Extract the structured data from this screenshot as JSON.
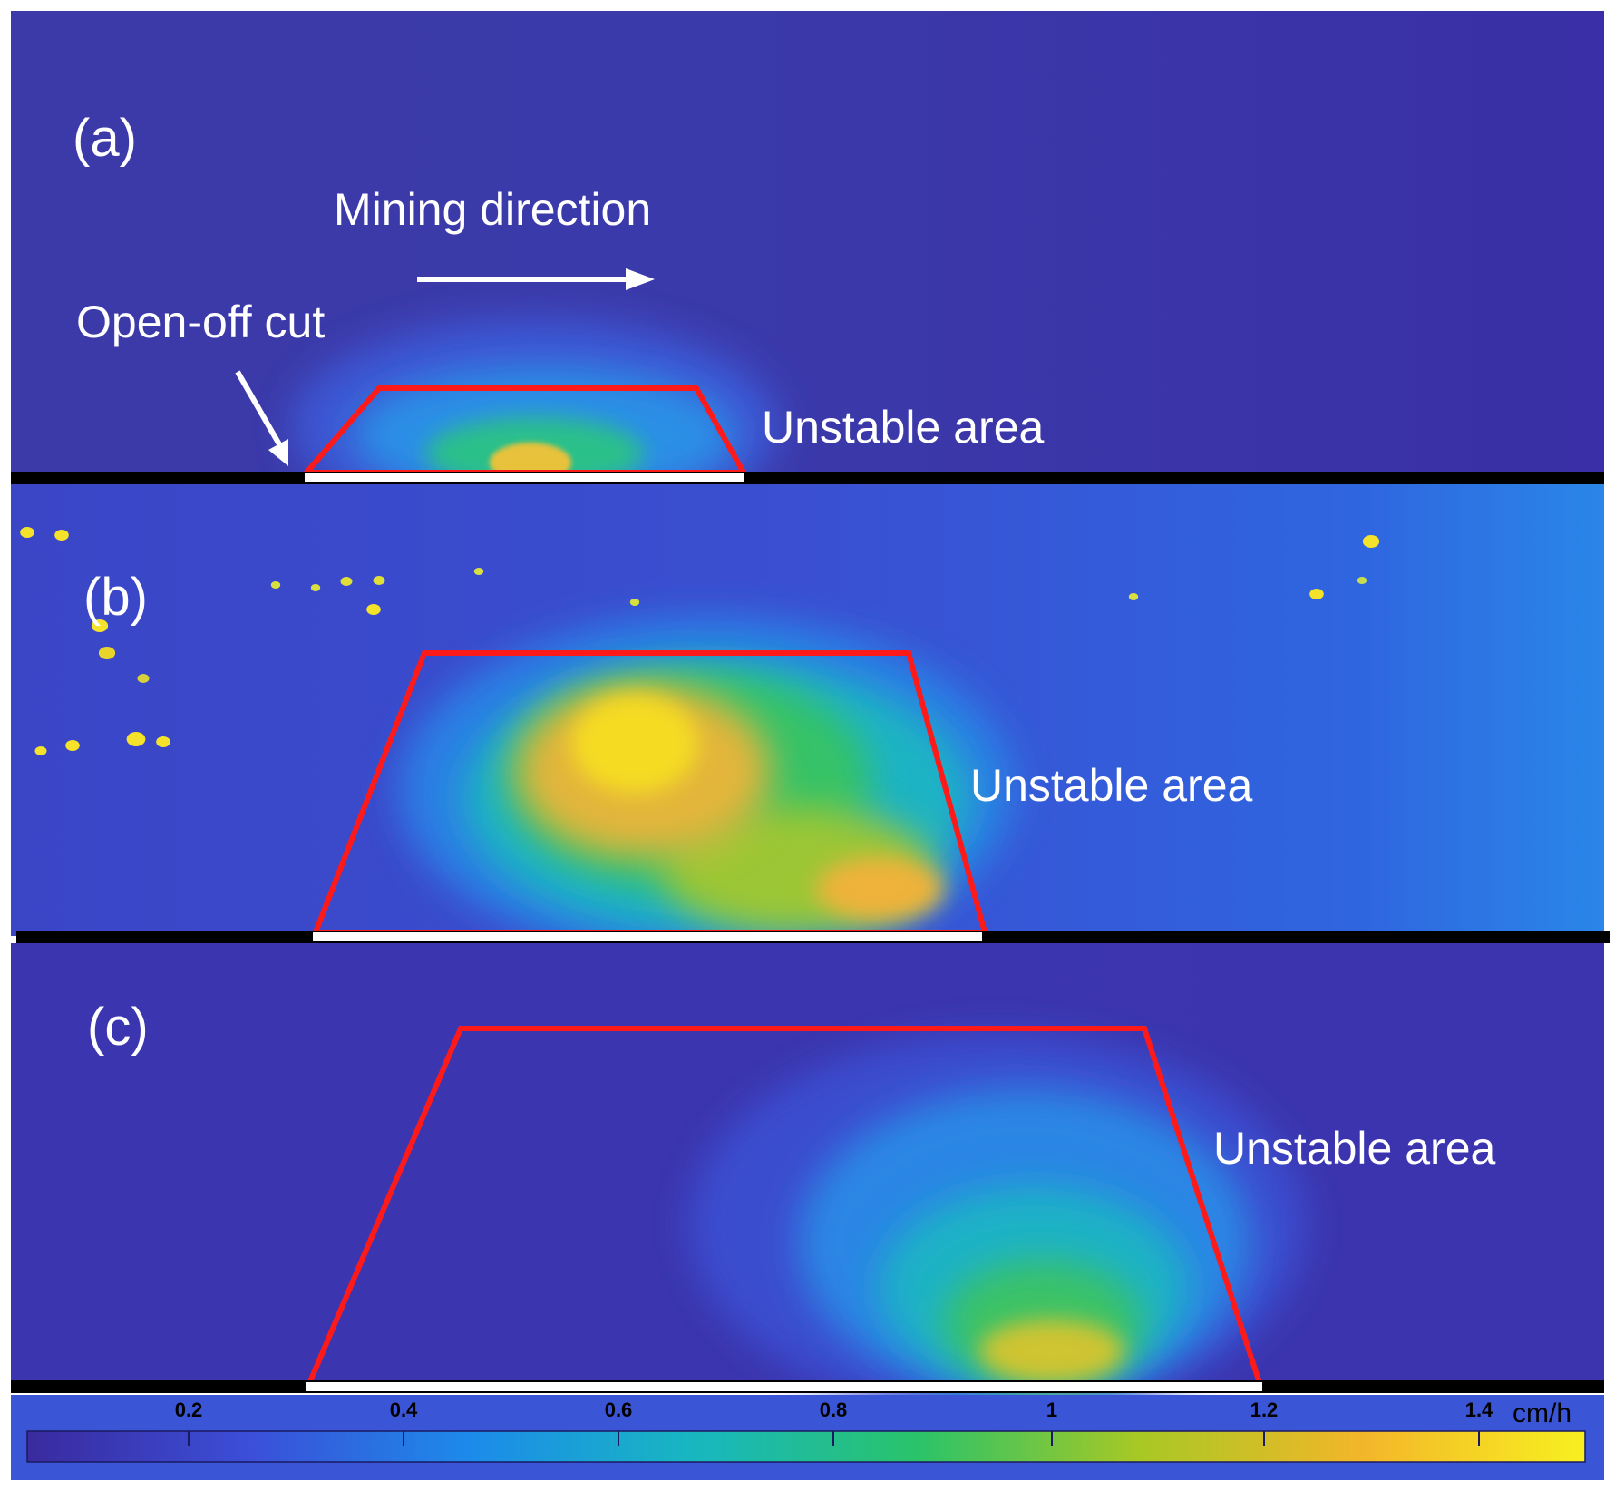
{
  "panels": [
    {
      "label": "(a)",
      "annotation": "Unstable area",
      "mining_direction": "Mining direction",
      "open_off_cut": "Open-off cut"
    },
    {
      "label": "(b)",
      "annotation": "Unstable area"
    },
    {
      "label": "(c)",
      "annotation": "Unstable area"
    }
  ],
  "colorbar": {
    "ticks": [
      "0.2",
      "0.4",
      "0.6",
      "0.8",
      "1",
      "1.2",
      "1.4"
    ],
    "unit": "cm/h",
    "colors": [
      "#3a2a9e",
      "#3b4fd8",
      "#1c8bea",
      "#18b7c0",
      "#2ac36a",
      "#a8c824",
      "#f3b62a",
      "#f7f020"
    ]
  },
  "colors": {
    "boundary": "#ff1a1a",
    "excavated_seam": "#ffffff",
    "seam_line": "#000000",
    "label_text": "#ffffff",
    "background_low": "#3b2fa8"
  }
}
